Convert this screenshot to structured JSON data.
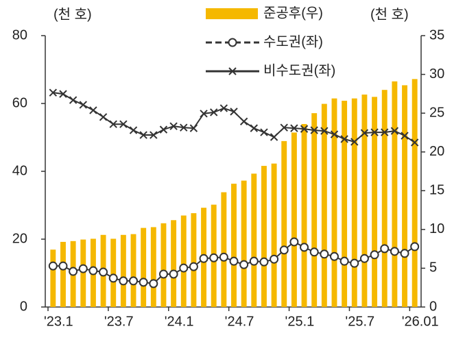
{
  "chart_data": {
    "type": "combo",
    "y_unit_label": "(천 호)",
    "y2_unit_label": "(천 호)",
    "categories": [
      "'23.1",
      null,
      null,
      null,
      null,
      null,
      "'23.7",
      null,
      null,
      null,
      null,
      null,
      "'24.1",
      null,
      null,
      null,
      null,
      null,
      "'24.7",
      null,
      null,
      null,
      null,
      null,
      "'25.1",
      null,
      null,
      null,
      null,
      null,
      "'25.7",
      null,
      null,
      null,
      null,
      null,
      "'26.01"
    ],
    "ylim": [
      0,
      80
    ],
    "yticks": [
      0,
      20,
      40,
      60,
      80
    ],
    "y2lim": [
      0,
      35
    ],
    "y2ticks": [
      0,
      5,
      10,
      15,
      20,
      25,
      30,
      35
    ],
    "series": [
      {
        "name": "준공후(우)",
        "type": "bar",
        "axis": "y2",
        "color": "#f5b800",
        "values": [
          7.4,
          8.4,
          8.5,
          8.7,
          8.8,
          9.3,
          8.8,
          9.3,
          9.4,
          10.2,
          10.3,
          10.8,
          11.2,
          11.8,
          12.1,
          12.8,
          13.2,
          14.8,
          15.9,
          16.3,
          17.2,
          18.2,
          18.5,
          21.4,
          22.5,
          23.6,
          25.0,
          26.2,
          26.9,
          26.6,
          26.9,
          27.4,
          27.1,
          28.0,
          29.1,
          28.6,
          29.4
        ]
      },
      {
        "name": "수도권(좌)",
        "type": "line",
        "marker": "circle",
        "color": "#333333",
        "values": [
          12.1,
          12.1,
          10.5,
          11.3,
          10.7,
          10.3,
          8.5,
          7.7,
          7.7,
          7.3,
          6.9,
          9.7,
          9.7,
          11.5,
          11.9,
          14.3,
          14.5,
          14.7,
          13.5,
          12.5,
          13.5,
          13.3,
          14.1,
          16.8,
          19.2,
          17.6,
          16.2,
          15.6,
          14.9,
          13.5,
          12.9,
          14.3,
          15.4,
          17.2,
          16.4,
          15.8,
          17.8
        ]
      },
      {
        "name": "비수도권(좌)",
        "type": "line",
        "marker": "x",
        "color": "#333333",
        "values": [
          63.2,
          62.8,
          61.0,
          59.6,
          58.0,
          56.0,
          53.9,
          53.9,
          52.1,
          50.7,
          50.7,
          52.3,
          53.3,
          52.9,
          52.7,
          57.0,
          57.4,
          58.6,
          57.6,
          54.7,
          52.7,
          51.5,
          50.1,
          52.9,
          52.7,
          52.5,
          52.1,
          51.9,
          50.9,
          49.5,
          48.7,
          51.3,
          51.5,
          51.5,
          51.9,
          50.5,
          48.5
        ]
      }
    ]
  }
}
